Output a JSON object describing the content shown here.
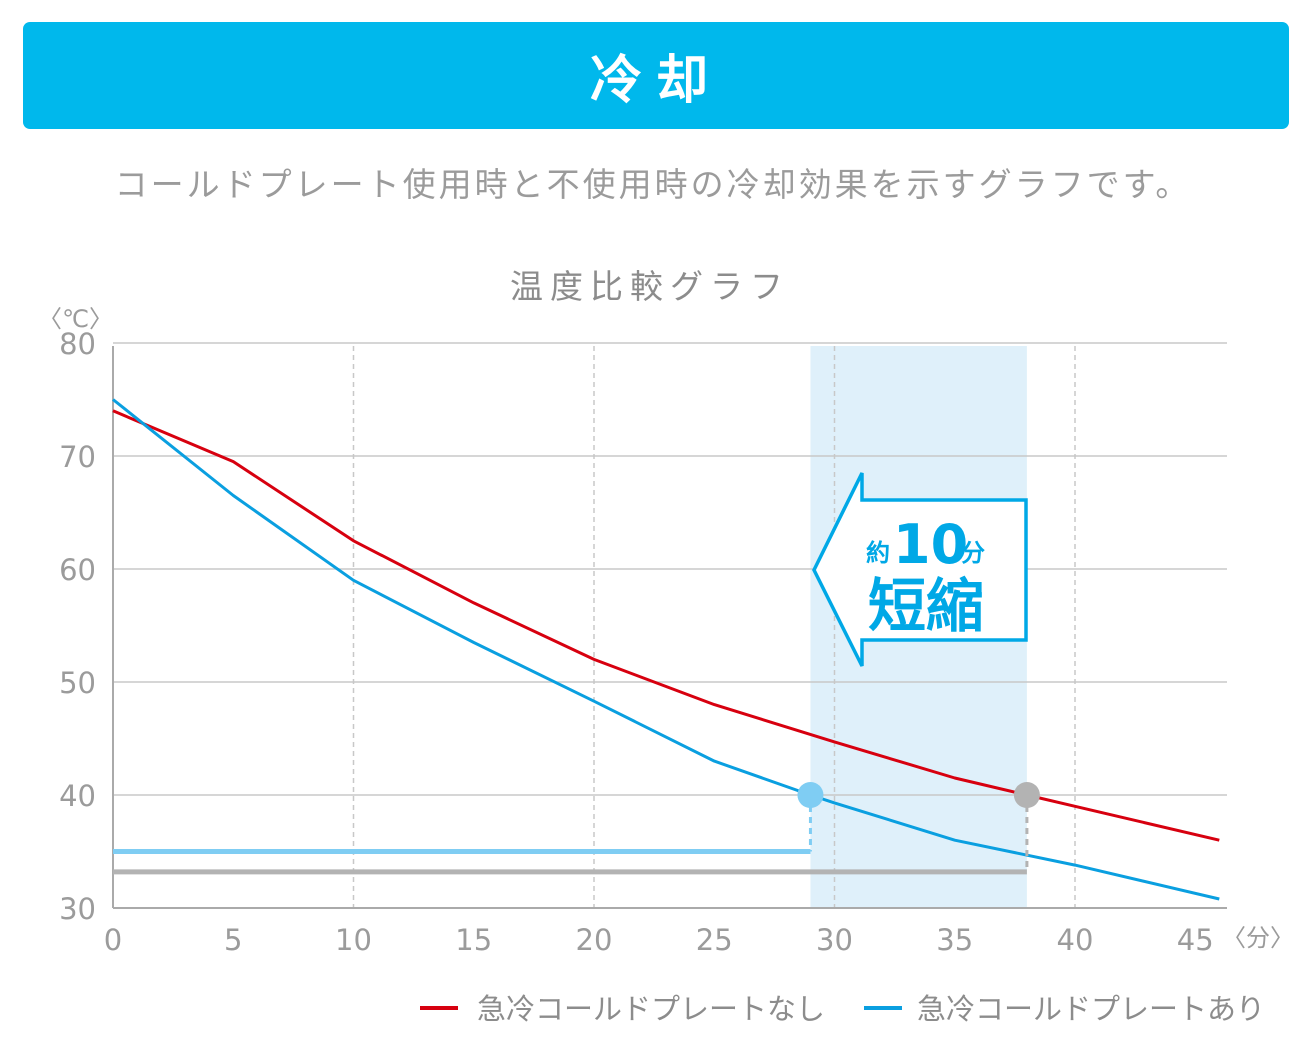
{
  "header": {
    "title": "冷却"
  },
  "description": "コールドプレート使用時と不使用時の冷却効果を示すグラフです。",
  "colors": {
    "banner": "#00b8ec",
    "red_series": "#d7000f",
    "blue_series": "#0a9fe0",
    "highlight_band": "#dff0fa",
    "marker_blue": "#7fcdf3",
    "marker_gray": "#b3b3b3",
    "annotation": "#00a8e6"
  },
  "chart_data": {
    "type": "line",
    "title": "温度比較グラフ",
    "y_unit": "〈℃〉",
    "x_unit": "〈分〉",
    "xlim": [
      0,
      46
    ],
    "ylim": [
      30,
      80
    ],
    "x_ticks": [
      0,
      5,
      10,
      15,
      20,
      25,
      30,
      35,
      40,
      45
    ],
    "y_ticks": [
      30,
      40,
      50,
      60,
      70,
      80
    ],
    "grid": "on",
    "legend_position": "bottom-right",
    "series": [
      {
        "name": "急冷コールドプレートなし",
        "color": "#d7000f",
        "x": [
          0,
          5,
          10,
          15,
          20,
          25,
          30,
          35,
          38,
          40,
          46
        ],
        "y": [
          74,
          69.5,
          62.5,
          57,
          52,
          48,
          44.7,
          41.5,
          40,
          39,
          36
        ]
      },
      {
        "name": "急冷コールドプレートあり",
        "color": "#0a9fe0",
        "x": [
          0,
          5,
          10,
          15,
          20,
          25,
          29,
          30,
          35,
          40,
          46
        ],
        "y": [
          75,
          66.5,
          59,
          53.5,
          48.3,
          43,
          40,
          39.3,
          36,
          33.8,
          30.8
        ]
      }
    ],
    "highlight_range": [
      29,
      38
    ],
    "markers": [
      {
        "x": 29,
        "y": 40,
        "color": "#7fcdf3"
      },
      {
        "x": 38,
        "y": 40,
        "color": "#b3b3b3"
      }
    ],
    "duration_bars": [
      {
        "to": 29,
        "y": 35,
        "color": "#7fcdf3"
      },
      {
        "to": 38,
        "y": 33.2,
        "color": "#b3b3b3"
      }
    ],
    "annotation": {
      "prefix": "約",
      "number": "10",
      "unit": "分",
      "label": "短縮"
    }
  }
}
